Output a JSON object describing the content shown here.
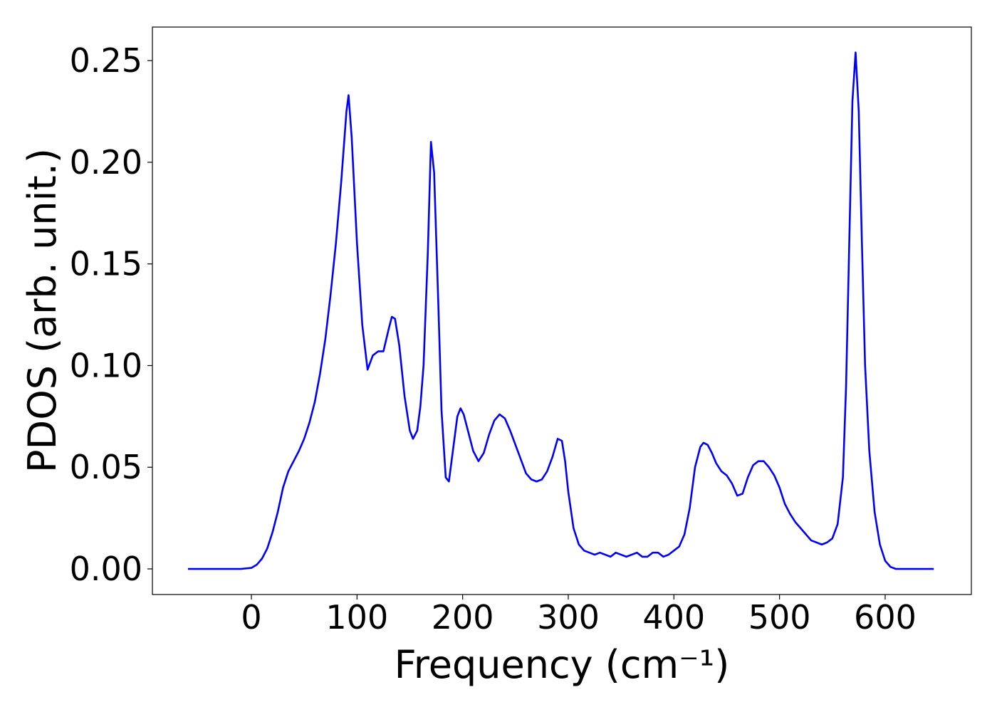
{
  "chart_data": {
    "type": "line",
    "xlabel": "Frequency (cm⁻¹)",
    "ylabel": "PDOS (arb. unit.)",
    "x": [
      -60,
      -40,
      -20,
      -10,
      0,
      5,
      10,
      15,
      20,
      25,
      30,
      35,
      40,
      45,
      50,
      55,
      60,
      65,
      70,
      75,
      80,
      85,
      90,
      92,
      95,
      100,
      105,
      110,
      115,
      120,
      125,
      130,
      133,
      136,
      140,
      145,
      150,
      153,
      157,
      160,
      163,
      167,
      170,
      173,
      177,
      180,
      184,
      187,
      190,
      195,
      198,
      201,
      205,
      210,
      215,
      220,
      225,
      230,
      235,
      240,
      245,
      250,
      255,
      260,
      265,
      270,
      275,
      280,
      285,
      290,
      294,
      297,
      300,
      305,
      310,
      315,
      320,
      325,
      330,
      335,
      340,
      345,
      350,
      355,
      360,
      365,
      370,
      375,
      380,
      385,
      390,
      395,
      400,
      405,
      410,
      415,
      420,
      425,
      428,
      432,
      436,
      440,
      445,
      450,
      455,
      460,
      465,
      470,
      475,
      480,
      485,
      490,
      495,
      500,
      505,
      510,
      515,
      520,
      525,
      530,
      535,
      540,
      545,
      550,
      555,
      560,
      563,
      566,
      569,
      572,
      575,
      578,
      581,
      585,
      590,
      595,
      600,
      605,
      610,
      620,
      646
    ],
    "series": [
      {
        "color": "#0000ff",
        "values": [
          0,
          0,
          0,
          0,
          0.0005,
          0.002,
          0.005,
          0.01,
          0.018,
          0.028,
          0.04,
          0.048,
          0.053,
          0.058,
          0.064,
          0.072,
          0.082,
          0.096,
          0.113,
          0.135,
          0.16,
          0.19,
          0.225,
          0.233,
          0.212,
          0.16,
          0.12,
          0.098,
          0.105,
          0.107,
          0.107,
          0.118,
          0.124,
          0.123,
          0.11,
          0.085,
          0.068,
          0.064,
          0.068,
          0.08,
          0.1,
          0.155,
          0.21,
          0.195,
          0.13,
          0.078,
          0.045,
          0.043,
          0.055,
          0.075,
          0.079,
          0.076,
          0.068,
          0.058,
          0.053,
          0.057,
          0.066,
          0.073,
          0.076,
          0.074,
          0.068,
          0.061,
          0.054,
          0.047,
          0.044,
          0.043,
          0.044,
          0.048,
          0.055,
          0.064,
          0.063,
          0.053,
          0.038,
          0.02,
          0.012,
          0.009,
          0.008,
          0.007,
          0.008,
          0.007,
          0.006,
          0.008,
          0.007,
          0.006,
          0.007,
          0.008,
          0.006,
          0.006,
          0.008,
          0.008,
          0.006,
          0.007,
          0.009,
          0.011,
          0.017,
          0.03,
          0.05,
          0.06,
          0.062,
          0.061,
          0.057,
          0.052,
          0.048,
          0.046,
          0.042,
          0.036,
          0.037,
          0.045,
          0.051,
          0.053,
          0.053,
          0.05,
          0.046,
          0.04,
          0.032,
          0.027,
          0.023,
          0.02,
          0.017,
          0.014,
          0.013,
          0.012,
          0.013,
          0.015,
          0.022,
          0.045,
          0.09,
          0.16,
          0.23,
          0.254,
          0.225,
          0.16,
          0.1,
          0.058,
          0.028,
          0.012,
          0.004,
          0.001,
          0,
          0,
          0
        ]
      }
    ],
    "xlim": [
      -93.7,
      681.6
    ],
    "ylim": [
      -0.0126,
      0.2665
    ],
    "xticks": [
      0,
      100,
      200,
      300,
      400,
      500,
      600
    ],
    "yticks": [
      {
        "value": 0,
        "label": "0.00"
      },
      0.05,
      {
        "value": 0.1,
        "label": "0.10"
      },
      0.15,
      {
        "value": 0.2,
        "label": "0.20"
      },
      0.25
    ]
  }
}
